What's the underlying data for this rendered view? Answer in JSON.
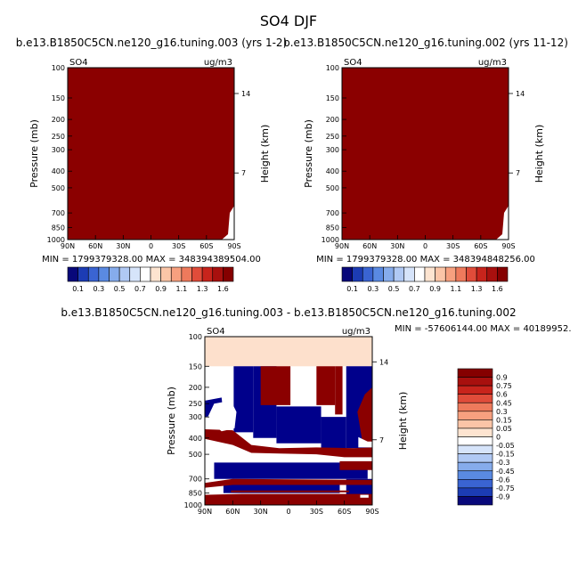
{
  "figure_title": "SO4 DJF",
  "colors": {
    "dark_red": "#8b0000",
    "dark_blue": "#00008b",
    "peach": "#fde0cc",
    "white": "#ffffff"
  },
  "chart_data": [
    {
      "type": "heatmap",
      "title": "b.e13.B1850C5CN.ne120_g16.tuning.003 (yrs 1-2)",
      "left_label": "SO4",
      "right_label": "ug/m3",
      "xlabel": "",
      "ylabel": "Pressure (mb)",
      "y2label": "Height (km)",
      "x_ticks": [
        "90N",
        "60N",
        "30N",
        "0",
        "30S",
        "60S",
        "90S"
      ],
      "x_range": [
        90,
        -90
      ],
      "y_ticks": [
        100,
        150,
        200,
        250,
        300,
        400,
        500,
        700,
        850,
        1000
      ],
      "y_range": [
        100,
        1000
      ],
      "y_scale": "log",
      "y2_ticks": [
        14,
        7
      ],
      "min_max": "MIN = 1799379328.00    MAX = 348394389504.00",
      "fill": "entire field above 1.6 (darkest red), except near the surface at 90S"
    },
    {
      "type": "heatmap",
      "title": "b.e13.B1850C5CN.ne120_g16.tuning.002 (yrs 11-12)",
      "left_label": "SO4",
      "right_label": "ug/m3",
      "xlabel": "",
      "ylabel": "Pressure (mb)",
      "y2label": "Height (km)",
      "x_ticks": [
        "90N",
        "60N",
        "30N",
        "0",
        "30S",
        "60S",
        "90S"
      ],
      "x_range": [
        90,
        -90
      ],
      "y_ticks": [
        100,
        150,
        200,
        250,
        300,
        400,
        500,
        700,
        850,
        1000
      ],
      "y_range": [
        100,
        1000
      ],
      "y_scale": "log",
      "y2_ticks": [
        14,
        7
      ],
      "min_max": "MIN = 1799379328.00    MAX = 348394848256.00",
      "fill": "entire field above 1.6 (darkest red), except near the surface at 90S"
    },
    {
      "type": "heatmap",
      "title": "b.e13.B1850C5CN.ne120_g16.tuning.003 - b.e13.B1850C5CN.ne120_g16.tuning.002",
      "left_label": "SO4",
      "right_label": "ug/m3",
      "xlabel": "",
      "ylabel": "Pressure (mb)",
      "y2label": "Height (km)",
      "x_ticks": [
        "90N",
        "60N",
        "30N",
        "0",
        "30S",
        "60S",
        "90S"
      ],
      "x_range": [
        90,
        -90
      ],
      "y_ticks": [
        100,
        150,
        200,
        250,
        300,
        400,
        500,
        700,
        850,
        1000
      ],
      "y_range": [
        100,
        1000
      ],
      "y_scale": "log",
      "y2_ticks": [
        14,
        7
      ],
      "min_max": "MIN = -57606144.00    MAX = 40189952.",
      "fill": "difference field: saturated positive (dark red) and negative (dark blue) bands, small values (peach/white)"
    }
  ],
  "colorbars": {
    "top": {
      "orientation": "horizontal",
      "labels": [
        "0.1",
        "0.3",
        "0.5",
        "0.7",
        "0.9",
        "1.1",
        "1.3",
        "1.6"
      ],
      "colors": [
        "#08087a",
        "#1c3cb4",
        "#3a64d2",
        "#5a8ae2",
        "#86acec",
        "#b0c9f4",
        "#d6e4fa",
        "#ffffff",
        "#fde4d0",
        "#fbc5a7",
        "#f7a07f",
        "#ee7a5c",
        "#e04c3a",
        "#c8241c",
        "#a8100e",
        "#850000"
      ]
    },
    "diff": {
      "orientation": "vertical",
      "labels": [
        "0.9",
        "0.75",
        "0.6",
        "0.45",
        "0.3",
        "0.15",
        "0.05",
        "0",
        "-0.05",
        "-0.15",
        "-0.3",
        "-0.45",
        "-0.6",
        "-0.75",
        "-0.9"
      ],
      "colors": [
        "#850000",
        "#a8100e",
        "#c8241c",
        "#e04c3a",
        "#ee7a5c",
        "#f7a07f",
        "#fbc5a7",
        "#fde4d0",
        "#ffffff",
        "#d6e4fa",
        "#b0c9f4",
        "#86acec",
        "#5a8ae2",
        "#3a64d2",
        "#1c3cb4",
        "#08087a"
      ]
    }
  }
}
